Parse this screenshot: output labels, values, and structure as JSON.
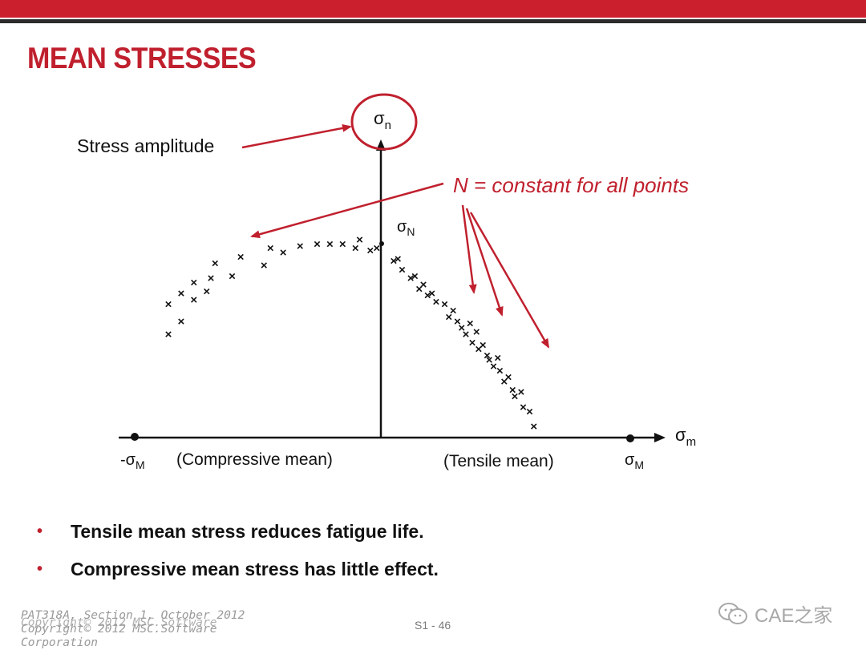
{
  "slide": {
    "title": "MEAN STRESSES",
    "accent_color": "#c0202e",
    "bar_color": "#cc1f2d"
  },
  "diagram": {
    "y_axis_label_base": "σ",
    "y_axis_label_sub": "n",
    "x_axis_label_base": "σ",
    "x_axis_label_sub": "m",
    "intercept_label_base": "σ",
    "intercept_label_sub": "N",
    "neg_limit_label_base": "-σ",
    "neg_limit_label_sub": "M",
    "pos_limit_label_base": "σ",
    "pos_limit_label_sub": "M",
    "stress_amplitude_label": "Stress amplitude",
    "constant_note": "N = constant for all points",
    "compressive_label": "(Compressive mean)",
    "tensile_label": "(Tensile mean)",
    "marker_glyph": "×",
    "data_points": [
      [
        -1.0,
        0.62
      ],
      [
        -1.0,
        0.48
      ],
      [
        -0.94,
        0.67
      ],
      [
        -0.94,
        0.54
      ],
      [
        -0.88,
        0.64
      ],
      [
        -0.88,
        0.72
      ],
      [
        -0.82,
        0.68
      ],
      [
        -0.8,
        0.74
      ],
      [
        -0.78,
        0.81
      ],
      [
        -0.7,
        0.75
      ],
      [
        -0.66,
        0.84
      ],
      [
        -0.55,
        0.8
      ],
      [
        -0.52,
        0.88
      ],
      [
        -0.46,
        0.86
      ],
      [
        -0.38,
        0.89
      ],
      [
        -0.3,
        0.9
      ],
      [
        -0.24,
        0.9
      ],
      [
        -0.18,
        0.9
      ],
      [
        -0.12,
        0.88
      ],
      [
        -0.1,
        0.92
      ],
      [
        -0.05,
        0.87
      ],
      [
        -0.02,
        0.88
      ],
      [
        0.06,
        0.82
      ],
      [
        0.08,
        0.83
      ],
      [
        0.1,
        0.78
      ],
      [
        0.14,
        0.74
      ],
      [
        0.16,
        0.75
      ],
      [
        0.18,
        0.69
      ],
      [
        0.2,
        0.71
      ],
      [
        0.22,
        0.66
      ],
      [
        0.24,
        0.67
      ],
      [
        0.26,
        0.63
      ],
      [
        0.3,
        0.62
      ],
      [
        0.32,
        0.56
      ],
      [
        0.34,
        0.59
      ],
      [
        0.36,
        0.54
      ],
      [
        0.38,
        0.51
      ],
      [
        0.4,
        0.48
      ],
      [
        0.42,
        0.53
      ],
      [
        0.43,
        0.44
      ],
      [
        0.45,
        0.49
      ],
      [
        0.46,
        0.41
      ],
      [
        0.48,
        0.43
      ],
      [
        0.5,
        0.38
      ],
      [
        0.51,
        0.36
      ],
      [
        0.53,
        0.33
      ],
      [
        0.55,
        0.37
      ],
      [
        0.56,
        0.31
      ],
      [
        0.58,
        0.26
      ],
      [
        0.6,
        0.28
      ],
      [
        0.62,
        0.22
      ],
      [
        0.63,
        0.19
      ],
      [
        0.66,
        0.21
      ],
      [
        0.67,
        0.14
      ],
      [
        0.7,
        0.12
      ],
      [
        0.72,
        0.05
      ]
    ]
  },
  "bullets": [
    {
      "marker": "•",
      "text": "Tensile mean stress reduces fatigue life."
    },
    {
      "marker": "•",
      "text": "Compressive mean stress has little effect."
    }
  ],
  "footer": {
    "left_line1": "PAT318A, Section 1, October 2012",
    "left_line2a": "Copyright© 2012 MSC.Software",
    "left_line2b": "Copyright© 2012 MSC.Software",
    "left_line3": "Corporation",
    "slide_number": "S1 - 46",
    "watermark_text": "CAE之家"
  }
}
